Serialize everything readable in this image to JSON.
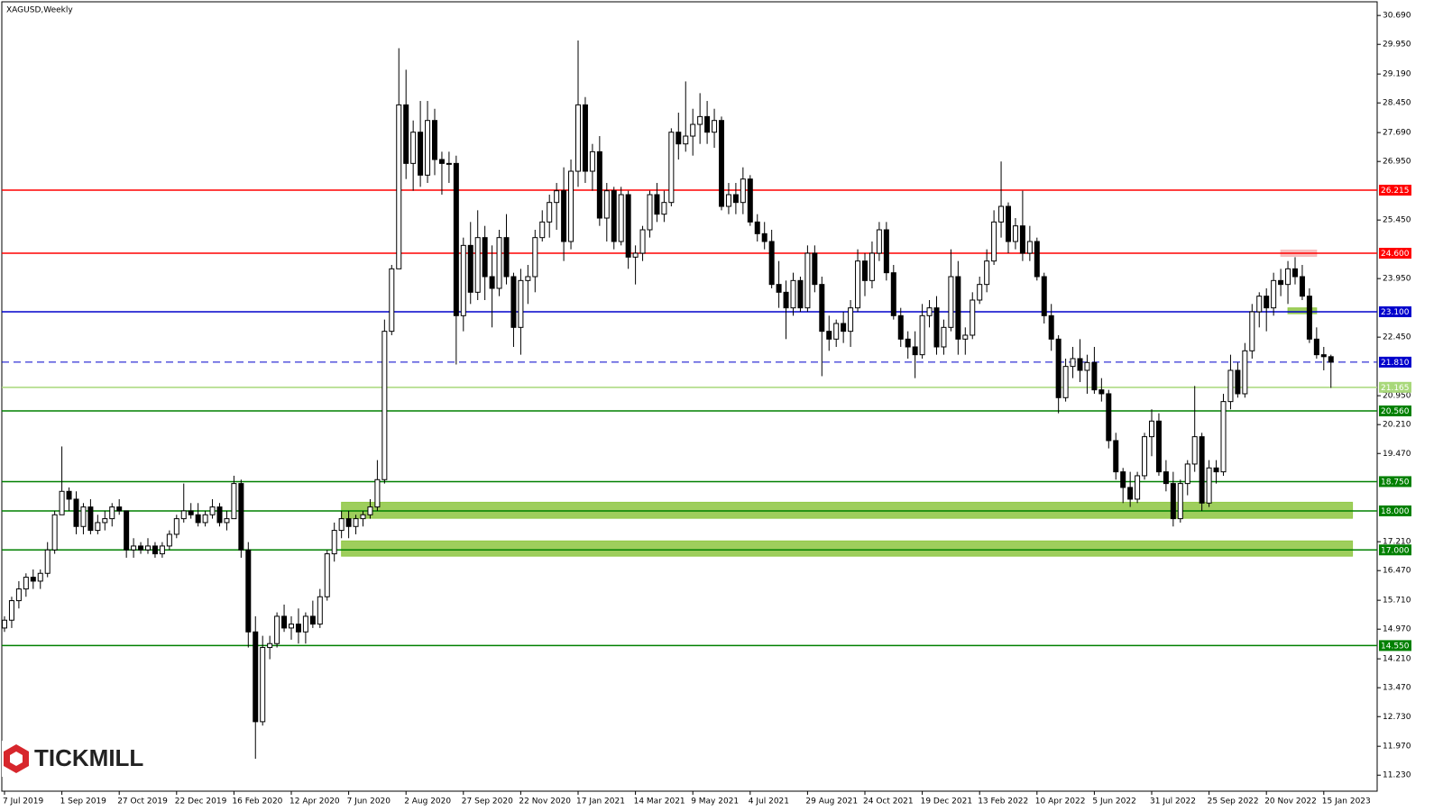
{
  "chart_data": {
    "type": "candlestick",
    "title": "XAGUSD,Weekly",
    "logo": "TICKMILL",
    "ylim": [
      10.82,
      31.04
    ],
    "yticks": [
      {
        "value": 30.69,
        "label": "30.690"
      },
      {
        "value": 29.95,
        "label": "29.950"
      },
      {
        "value": 29.19,
        "label": "29.190"
      },
      {
        "value": 28.45,
        "label": "28.450"
      },
      {
        "value": 27.69,
        "label": "27.690"
      },
      {
        "value": 26.95,
        "label": "26.950"
      },
      {
        "value": 25.45,
        "label": "25.450"
      },
      {
        "value": 23.95,
        "label": "23.950"
      },
      {
        "value": 22.45,
        "label": "22.450"
      },
      {
        "value": 20.95,
        "label": "20.950"
      },
      {
        "value": 20.21,
        "label": "20.210"
      },
      {
        "value": 19.47,
        "label": "19.470"
      },
      {
        "value": 17.21,
        "label": "17.210"
      },
      {
        "value": 16.47,
        "label": "16.470"
      },
      {
        "value": 15.71,
        "label": "15.710"
      },
      {
        "value": 14.97,
        "label": "14.970"
      },
      {
        "value": 14.21,
        "label": "14.210"
      },
      {
        "value": 13.47,
        "label": "13.470"
      },
      {
        "value": 12.73,
        "label": "12.730"
      },
      {
        "value": 11.97,
        "label": "11.970"
      },
      {
        "value": 11.23,
        "label": "11.230"
      }
    ],
    "categories": [
      "7 Jul 2019",
      null,
      null,
      null,
      null,
      null,
      null,
      null,
      "1 Sep 2019",
      null,
      null,
      null,
      null,
      null,
      null,
      null,
      "27 Oct 2019",
      null,
      null,
      null,
      null,
      null,
      null,
      null,
      "22 Dec 2019",
      null,
      null,
      null,
      null,
      null,
      null,
      null,
      "16 Feb 2020",
      null,
      null,
      null,
      null,
      null,
      null,
      null,
      "12 Apr 2020",
      null,
      null,
      null,
      null,
      null,
      null,
      null,
      "7 Jun 2020",
      null,
      null,
      null,
      null,
      null,
      null,
      null,
      "2 Aug 2020",
      null,
      null,
      null,
      null,
      null,
      null,
      null,
      "27 Sep 2020",
      null,
      null,
      null,
      null,
      null,
      null,
      null,
      "22 Nov 2020",
      null,
      null,
      null,
      null,
      null,
      null,
      null,
      "17 Jan 2021",
      null,
      null,
      null,
      null,
      null,
      null,
      null,
      "14 Mar 2021",
      null,
      null,
      null,
      null,
      null,
      null,
      null,
      "9 May 2021",
      null,
      null,
      null,
      null,
      null,
      null,
      null,
      "4 Jul 2021",
      null,
      null,
      null,
      null,
      null,
      null,
      null,
      "29 Aug 2021",
      null,
      null,
      null,
      null,
      null,
      null,
      null,
      "24 Oct 2021",
      null,
      null,
      null,
      null,
      null,
      null,
      null,
      "19 Dec 2021",
      null,
      null,
      null,
      null,
      null,
      null,
      null,
      "13 Feb 2022",
      null,
      null,
      null,
      null,
      null,
      null,
      null,
      "10 Apr 2022",
      null,
      null,
      null,
      null,
      null,
      null,
      null,
      "5 Jun 2022",
      null,
      null,
      null,
      null,
      null,
      null,
      null,
      "31 Jul 2022",
      null,
      null,
      null,
      null,
      null,
      null,
      null,
      "25 Sep 2022",
      null,
      null,
      null,
      null,
      null,
      null,
      null,
      "20 Nov 2022",
      null,
      null,
      null,
      null,
      null,
      null,
      null,
      "15 Jan 2023",
      null
    ],
    "ohlc": [
      [
        15.0,
        15.3,
        14.9,
        15.2
      ],
      [
        15.2,
        15.8,
        15.0,
        15.7
      ],
      [
        15.7,
        16.2,
        15.5,
        16.0
      ],
      [
        16.0,
        16.4,
        15.8,
        16.3
      ],
      [
        16.3,
        16.5,
        16.0,
        16.2
      ],
      [
        16.2,
        16.5,
        16.0,
        16.4
      ],
      [
        16.4,
        17.2,
        16.3,
        17.0
      ],
      [
        17.0,
        18.0,
        16.9,
        17.9
      ],
      [
        17.9,
        19.65,
        17.9,
        18.5
      ],
      [
        18.5,
        18.6,
        18.0,
        18.3
      ],
      [
        18.3,
        18.5,
        17.4,
        17.6
      ],
      [
        17.6,
        18.2,
        17.4,
        18.1
      ],
      [
        18.1,
        18.3,
        17.4,
        17.5
      ],
      [
        17.5,
        17.9,
        17.4,
        17.7
      ],
      [
        17.7,
        18.0,
        17.5,
        17.8
      ],
      [
        17.8,
        18.2,
        17.6,
        18.1
      ],
      [
        18.1,
        18.3,
        17.9,
        18.0
      ],
      [
        18.0,
        18.0,
        16.8,
        17.0
      ],
      [
        17.0,
        17.3,
        16.8,
        17.1
      ],
      [
        17.1,
        17.2,
        16.9,
        17.0
      ],
      [
        17.0,
        17.3,
        16.9,
        17.1
      ],
      [
        17.1,
        17.2,
        16.8,
        16.9
      ],
      [
        16.9,
        17.2,
        16.8,
        17.1
      ],
      [
        17.1,
        17.5,
        17.0,
        17.4
      ],
      [
        17.4,
        17.9,
        17.3,
        17.8
      ],
      [
        17.8,
        18.7,
        17.7,
        18.0
      ],
      [
        18.0,
        18.2,
        17.8,
        17.9
      ],
      [
        17.9,
        18.2,
        17.6,
        17.7
      ],
      [
        17.7,
        18.0,
        17.6,
        17.9
      ],
      [
        17.9,
        18.3,
        17.8,
        18.1
      ],
      [
        18.1,
        18.2,
        17.6,
        17.7
      ],
      [
        17.7,
        18.0,
        17.5,
        17.8
      ],
      [
        17.8,
        18.9,
        17.8,
        18.7
      ],
      [
        18.7,
        18.8,
        16.8,
        17.0
      ],
      [
        17.0,
        17.2,
        14.5,
        14.9
      ],
      [
        14.9,
        15.3,
        11.65,
        12.6
      ],
      [
        12.6,
        14.8,
        12.5,
        14.5
      ],
      [
        14.5,
        14.8,
        14.2,
        14.6
      ],
      [
        14.6,
        15.4,
        14.5,
        15.3
      ],
      [
        15.3,
        15.6,
        14.9,
        15.0
      ],
      [
        15.0,
        15.3,
        14.7,
        15.1
      ],
      [
        15.1,
        15.5,
        14.6,
        14.9
      ],
      [
        14.9,
        15.4,
        14.6,
        15.3
      ],
      [
        15.3,
        15.7,
        15.0,
        15.1
      ],
      [
        15.1,
        16.0,
        15.0,
        15.8
      ],
      [
        15.8,
        17.0,
        15.7,
        16.9
      ],
      [
        16.9,
        17.7,
        16.7,
        17.5
      ],
      [
        17.5,
        18.0,
        17.3,
        17.8
      ],
      [
        17.8,
        18.0,
        17.3,
        17.6
      ],
      [
        17.6,
        17.9,
        17.4,
        17.8
      ],
      [
        17.8,
        18.0,
        17.6,
        17.9
      ],
      [
        17.9,
        18.3,
        17.8,
        18.1
      ],
      [
        18.1,
        19.3,
        18.0,
        18.8
      ],
      [
        18.8,
        22.9,
        18.7,
        22.6
      ],
      [
        22.6,
        24.3,
        22.5,
        24.2
      ],
      [
        24.2,
        29.85,
        24.2,
        28.4
      ],
      [
        28.4,
        29.3,
        26.5,
        26.9
      ],
      [
        26.9,
        28.0,
        26.2,
        27.7
      ],
      [
        27.7,
        28.5,
        26.3,
        26.6
      ],
      [
        26.6,
        28.5,
        26.4,
        28.0
      ],
      [
        28.0,
        28.3,
        26.6,
        27.0
      ],
      [
        27.0,
        27.2,
        26.1,
        26.9
      ],
      [
        26.9,
        27.2,
        26.4,
        26.9
      ],
      [
        26.9,
        27.1,
        21.75,
        23.0
      ],
      [
        23.0,
        25.0,
        22.6,
        24.8
      ],
      [
        24.8,
        25.4,
        23.3,
        23.6
      ],
      [
        23.6,
        25.7,
        23.4,
        25.0
      ],
      [
        25.0,
        25.3,
        23.4,
        24.0
      ],
      [
        24.0,
        24.8,
        22.7,
        23.7
      ],
      [
        23.7,
        25.2,
        23.5,
        25.0
      ],
      [
        25.0,
        25.6,
        23.8,
        24.0
      ],
      [
        24.0,
        24.1,
        22.2,
        22.7
      ],
      [
        22.7,
        24.2,
        22.0,
        23.9
      ],
      [
        23.9,
        24.3,
        23.3,
        24.0
      ],
      [
        24.0,
        25.2,
        23.6,
        25.0
      ],
      [
        25.0,
        25.7,
        24.9,
        25.4
      ],
      [
        25.4,
        26.1,
        25.0,
        25.9
      ],
      [
        25.9,
        26.4,
        25.2,
        26.2
      ],
      [
        26.2,
        26.8,
        24.4,
        24.9
      ],
      [
        24.9,
        27.0,
        24.7,
        26.7
      ],
      [
        26.7,
        30.05,
        26.3,
        28.4
      ],
      [
        28.4,
        28.6,
        26.4,
        26.7
      ],
      [
        26.7,
        27.4,
        26.2,
        27.2
      ],
      [
        27.2,
        27.6,
        25.3,
        25.5
      ],
      [
        25.5,
        26.4,
        24.9,
        26.2
      ],
      [
        26.2,
        26.3,
        24.7,
        24.9
      ],
      [
        24.9,
        26.3,
        24.8,
        26.1
      ],
      [
        26.1,
        26.2,
        24.2,
        24.5
      ],
      [
        24.5,
        24.8,
        23.8,
        24.6
      ],
      [
        24.6,
        25.3,
        24.4,
        25.2
      ],
      [
        25.2,
        26.2,
        25.0,
        26.1
      ],
      [
        26.1,
        26.4,
        25.4,
        25.6
      ],
      [
        25.6,
        26.2,
        25.4,
        25.9
      ],
      [
        25.9,
        27.8,
        25.8,
        27.7
      ],
      [
        27.7,
        28.2,
        27.0,
        27.4
      ],
      [
        27.4,
        29.0,
        27.2,
        27.6
      ],
      [
        27.6,
        28.3,
        27.1,
        27.9
      ],
      [
        27.9,
        28.7,
        27.4,
        28.1
      ],
      [
        28.1,
        28.5,
        27.4,
        27.7
      ],
      [
        27.7,
        28.3,
        27.3,
        28.0
      ],
      [
        28.0,
        28.1,
        25.7,
        25.8
      ],
      [
        25.8,
        26.4,
        25.6,
        26.1
      ],
      [
        26.1,
        26.4,
        25.6,
        25.9
      ],
      [
        25.9,
        26.8,
        25.6,
        26.5
      ],
      [
        26.5,
        26.6,
        25.3,
        25.4
      ],
      [
        25.4,
        25.6,
        24.9,
        25.1
      ],
      [
        25.1,
        25.4,
        24.7,
        24.9
      ],
      [
        24.9,
        25.2,
        23.7,
        23.8
      ],
      [
        23.8,
        24.4,
        23.2,
        23.6
      ],
      [
        23.6,
        23.9,
        22.4,
        23.2
      ],
      [
        23.2,
        24.1,
        23.0,
        23.9
      ],
      [
        23.9,
        24.0,
        23.1,
        23.2
      ],
      [
        23.2,
        24.8,
        23.1,
        24.6
      ],
      [
        24.6,
        24.8,
        23.6,
        23.8
      ],
      [
        23.8,
        24.0,
        21.45,
        22.6
      ],
      [
        22.6,
        23.0,
        22.1,
        22.4
      ],
      [
        22.4,
        22.9,
        22.2,
        22.8
      ],
      [
        22.8,
        23.1,
        22.3,
        22.6
      ],
      [
        22.6,
        23.4,
        22.2,
        23.2
      ],
      [
        23.2,
        24.7,
        23.1,
        24.4
      ],
      [
        24.4,
        24.6,
        23.5,
        23.9
      ],
      [
        23.9,
        24.9,
        23.7,
        24.6
      ],
      [
        24.6,
        25.4,
        24.4,
        25.2
      ],
      [
        25.2,
        25.4,
        23.9,
        24.1
      ],
      [
        24.1,
        24.3,
        22.9,
        23.0
      ],
      [
        23.0,
        23.2,
        22.2,
        22.4
      ],
      [
        22.4,
        22.6,
        21.9,
        22.2
      ],
      [
        22.2,
        22.6,
        21.4,
        22.0
      ],
      [
        22.0,
        23.3,
        21.9,
        23.0
      ],
      [
        23.0,
        23.4,
        22.7,
        23.2
      ],
      [
        23.2,
        23.5,
        22.0,
        22.2
      ],
      [
        22.2,
        22.9,
        22.0,
        22.7
      ],
      [
        22.7,
        24.7,
        22.6,
        24.0
      ],
      [
        24.0,
        24.4,
        22.0,
        22.4
      ],
      [
        22.4,
        22.7,
        22.0,
        22.5
      ],
      [
        22.5,
        23.6,
        22.4,
        23.4
      ],
      [
        23.4,
        24.0,
        23.3,
        23.8
      ],
      [
        23.8,
        24.7,
        23.6,
        24.4
      ],
      [
        24.4,
        25.7,
        24.3,
        25.4
      ],
      [
        25.4,
        26.95,
        25.0,
        25.8
      ],
      [
        25.8,
        25.9,
        24.6,
        24.9
      ],
      [
        24.9,
        25.5,
        24.7,
        25.3
      ],
      [
        25.3,
        26.2,
        24.4,
        24.6
      ],
      [
        24.6,
        25.3,
        24.4,
        24.9
      ],
      [
        24.9,
        25.0,
        23.9,
        24.0
      ],
      [
        24.0,
        24.1,
        22.8,
        23.0
      ],
      [
        23.0,
        23.3,
        22.1,
        22.4
      ],
      [
        22.4,
        22.5,
        20.5,
        20.9
      ],
      [
        20.9,
        21.9,
        20.8,
        21.7
      ],
      [
        21.7,
        22.2,
        21.4,
        21.9
      ],
      [
        21.9,
        22.4,
        21.3,
        21.6
      ],
      [
        21.6,
        22.0,
        21.0,
        21.8
      ],
      [
        21.8,
        22.2,
        21.0,
        21.1
      ],
      [
        21.1,
        21.4,
        20.8,
        21.0
      ],
      [
        21.0,
        21.1,
        19.6,
        19.8
      ],
      [
        19.8,
        20.0,
        18.8,
        19.0
      ],
      [
        19.0,
        19.1,
        18.2,
        18.6
      ],
      [
        18.6,
        19.0,
        18.1,
        18.3
      ],
      [
        18.3,
        19.0,
        18.2,
        18.9
      ],
      [
        18.9,
        20.0,
        18.8,
        19.9
      ],
      [
        19.9,
        20.6,
        19.4,
        20.3
      ],
      [
        20.3,
        20.5,
        18.9,
        19.0
      ],
      [
        19.0,
        19.3,
        18.5,
        18.7
      ],
      [
        18.7,
        19.0,
        17.6,
        17.8
      ],
      [
        17.8,
        18.8,
        17.7,
        18.7
      ],
      [
        18.7,
        19.3,
        18.4,
        19.2
      ],
      [
        19.2,
        21.2,
        19.0,
        19.9
      ],
      [
        19.9,
        20.0,
        18.0,
        18.2
      ],
      [
        18.2,
        19.3,
        18.1,
        19.1
      ],
      [
        19.1,
        19.3,
        18.7,
        19.0
      ],
      [
        19.0,
        21.0,
        18.9,
        20.8
      ],
      [
        20.8,
        22.0,
        20.6,
        21.6
      ],
      [
        21.6,
        21.8,
        20.9,
        21.0
      ],
      [
        21.0,
        22.3,
        20.9,
        22.1
      ],
      [
        22.1,
        23.3,
        21.9,
        23.1
      ],
      [
        23.1,
        23.6,
        22.7,
        23.5
      ],
      [
        23.5,
        23.7,
        22.6,
        23.2
      ],
      [
        23.2,
        24.1,
        23.0,
        23.9
      ],
      [
        23.9,
        24.2,
        23.5,
        23.8
      ],
      [
        23.8,
        24.4,
        23.3,
        24.2
      ],
      [
        24.2,
        24.5,
        23.8,
        24.0
      ],
      [
        24.0,
        24.3,
        23.4,
        23.5
      ],
      [
        23.5,
        23.7,
        22.3,
        22.4
      ],
      [
        22.4,
        22.7,
        21.9,
        22.0
      ],
      [
        22.0,
        22.2,
        21.6,
        21.95
      ],
      [
        21.95,
        22.0,
        21.15,
        21.81
      ]
    ],
    "zones": [
      {
        "low": 17.81,
        "high": 18.22,
        "from": 47,
        "to": 188,
        "color": "#8dc63f"
      },
      {
        "low": 16.84,
        "high": 17.23,
        "from": 47,
        "to": 188,
        "color": "#8dc63f"
      },
      {
        "low": 24.52,
        "high": 24.68,
        "from": 178,
        "to": 183,
        "color": "#f4b6b6"
      },
      {
        "low": 23.05,
        "high": 23.2,
        "from": 179,
        "to": 183,
        "color": "#8dc63f"
      }
    ],
    "levels": [
      {
        "value": 26.215,
        "label": "26.215",
        "color": "#ff0000"
      },
      {
        "value": 24.6,
        "label": "24.600",
        "color": "#ff0000"
      },
      {
        "value": 23.1,
        "label": "23.100",
        "color": "#0000cc"
      },
      {
        "value": 21.81,
        "label": "21.810",
        "color": "#0000cc",
        "dashed": true
      },
      {
        "value": 21.165,
        "label": "21.165",
        "color": "#a8d87a"
      },
      {
        "value": 20.56,
        "label": "20.560",
        "color": "#008000"
      },
      {
        "value": 18.75,
        "label": "18.750",
        "color": "#008000"
      },
      {
        "value": 18.0,
        "label": "18.000",
        "color": "#008000"
      },
      {
        "value": 17.0,
        "label": "17.000",
        "color": "#008000"
      },
      {
        "value": 14.55,
        "label": "14.550",
        "color": "#008000"
      }
    ]
  }
}
